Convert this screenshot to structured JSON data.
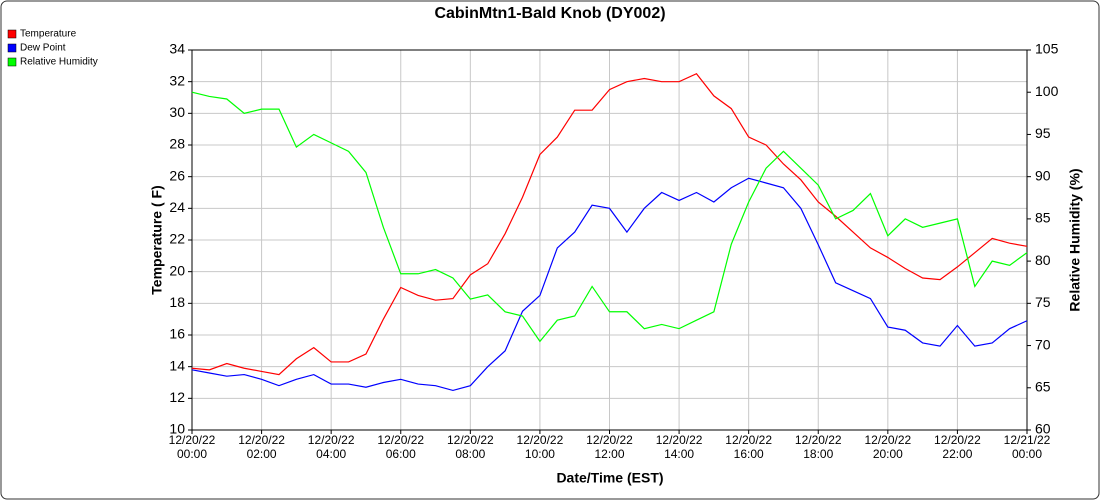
{
  "chart_data": {
    "type": "line",
    "title": "CabinMtn1-Bald Knob (DY002)",
    "xlabel": "Date/Time (EST)",
    "ylabel": "Temperature ( F)",
    "y2label": "Relative Humidity (%)",
    "x": [
      0,
      0.5,
      1,
      1.5,
      2,
      2.5,
      3,
      3.5,
      4,
      4.5,
      5,
      5.5,
      6,
      6.5,
      7,
      7.5,
      8,
      8.5,
      9,
      9.5,
      10,
      10.5,
      11,
      11.5,
      12,
      12.5,
      13,
      13.5,
      14,
      14.5,
      15,
      15.5,
      16,
      16.5,
      17,
      17.5,
      18,
      18.5,
      19,
      19.5,
      20,
      20.5,
      21,
      21.5,
      22,
      22.5,
      23,
      23.5,
      24
    ],
    "series": [
      {
        "name": "Temperature",
        "color": "#ff0000",
        "values": [
          13.9,
          13.8,
          14.2,
          13.9,
          13.7,
          13.5,
          14.5,
          15.2,
          14.3,
          14.3,
          14.8,
          17.0,
          19.0,
          18.5,
          18.2,
          18.3,
          19.8,
          20.5,
          22.4,
          24.7,
          27.4,
          28.5,
          30.2,
          30.2,
          31.5,
          32.0,
          32.2,
          32.0,
          32.0,
          32.5,
          31.1,
          30.3,
          28.5,
          28.0,
          26.8,
          25.8,
          24.4,
          23.5,
          22.5,
          21.5,
          20.9,
          20.2,
          19.6,
          19.5,
          20.3,
          21.2,
          22.1,
          21.8,
          21.6
        ]
      },
      {
        "name": "Dew Point",
        "color": "#0000ff",
        "values": [
          13.8,
          13.6,
          13.4,
          13.5,
          13.2,
          12.8,
          13.2,
          13.5,
          12.9,
          12.9,
          12.7,
          13.0,
          13.2,
          12.9,
          12.8,
          12.5,
          12.8,
          14.0,
          15.0,
          17.5,
          18.5,
          21.5,
          22.5,
          24.2,
          24.0,
          22.5,
          24.0,
          25.0,
          24.5,
          25.0,
          24.4,
          25.3,
          25.9,
          25.6,
          25.3,
          24.0,
          21.7,
          19.3,
          18.8,
          18.3,
          16.5,
          16.3,
          15.5,
          15.3,
          16.6,
          15.3,
          15.5,
          16.4,
          16.9
        ]
      },
      {
        "name": "Relative Humidity",
        "color": "#00ff00",
        "axis": "y2",
        "values": [
          100,
          99.5,
          99.2,
          97.5,
          98,
          98,
          93.5,
          95,
          94,
          93,
          90.5,
          84,
          78.5,
          78.5,
          79,
          78,
          75.5,
          76,
          74,
          73.5,
          70.5,
          73,
          73.5,
          77,
          74,
          74,
          72,
          72.5,
          72,
          73,
          74,
          82,
          87,
          91,
          93,
          91,
          89,
          85,
          86,
          88,
          83,
          85,
          84,
          84.5,
          85,
          77,
          80,
          79.5,
          81
        ]
      }
    ],
    "xlim": [
      0,
      24
    ],
    "xticks": [
      {
        "value": 0,
        "label": "12/20/22 00:00"
      },
      {
        "value": 2,
        "label": "12/20/22 02:00"
      },
      {
        "value": 4,
        "label": "12/20/22 04:00"
      },
      {
        "value": 6,
        "label": "12/20/22 06:00"
      },
      {
        "value": 8,
        "label": "12/20/22 08:00"
      },
      {
        "value": 10,
        "label": "12/20/22 10:00"
      },
      {
        "value": 12,
        "label": "12/20/22 12:00"
      },
      {
        "value": 14,
        "label": "12/20/22 14:00"
      },
      {
        "value": 16,
        "label": "12/20/22 16:00"
      },
      {
        "value": 18,
        "label": "12/20/22 18:00"
      },
      {
        "value": 20,
        "label": "12/20/22 20:00"
      },
      {
        "value": 22,
        "label": "12/20/22 22:00"
      },
      {
        "value": 24,
        "label": "12/21/22 00:00"
      }
    ],
    "ylim": [
      10,
      34
    ],
    "yticks": [
      10,
      12,
      14,
      16,
      18,
      20,
      22,
      24,
      26,
      28,
      30,
      32,
      34
    ],
    "y2lim": [
      60,
      105
    ],
    "y2ticks": [
      60,
      65,
      70,
      75,
      80,
      85,
      90,
      95,
      100,
      105
    ],
    "grid": true,
    "legend": "top-left"
  }
}
